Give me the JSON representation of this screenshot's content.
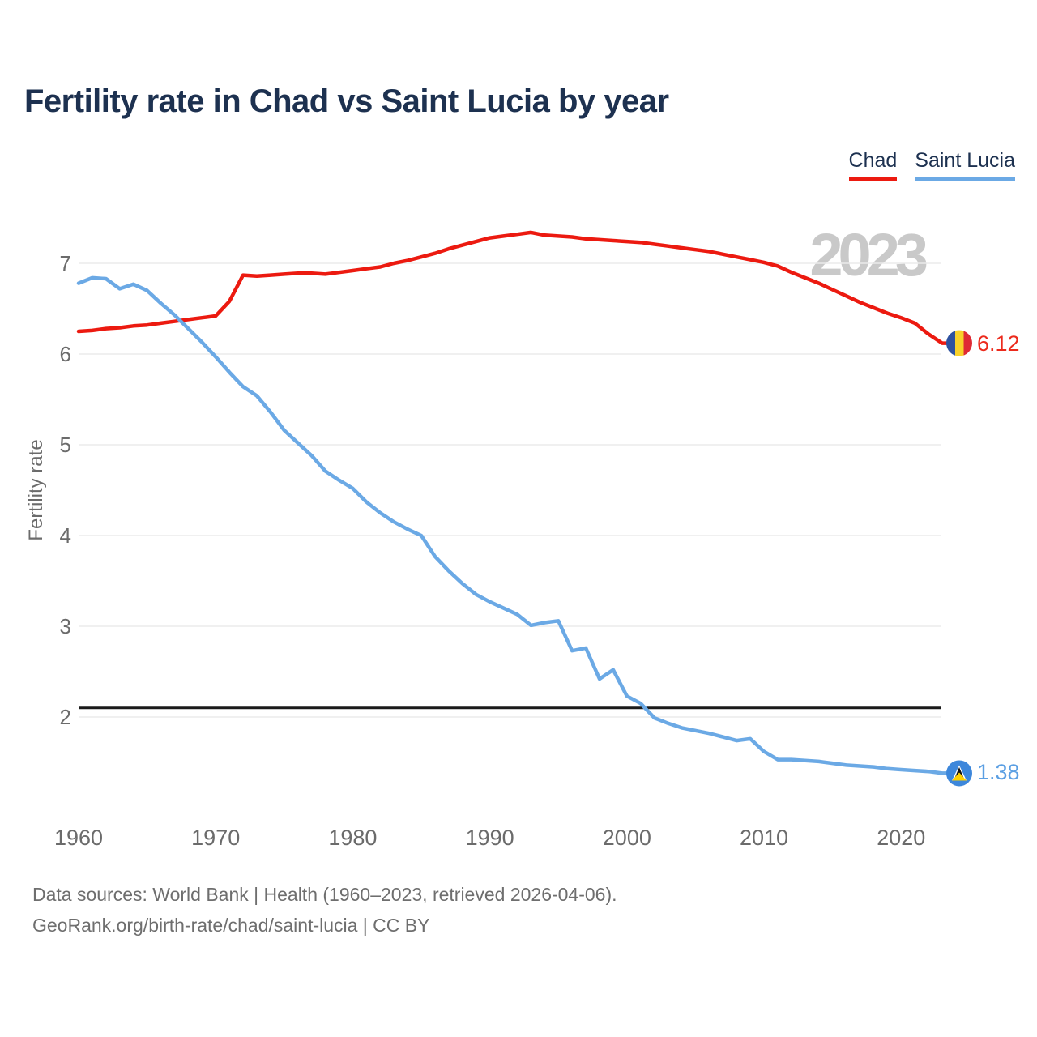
{
  "title": "Fertility rate in Chad vs Saint Lucia by year",
  "legend": [
    {
      "label": "Chad",
      "color": "#ec1a10"
    },
    {
      "label": "Saint Lucia",
      "color": "#6ba9e5"
    }
  ],
  "watermark": "2023",
  "y_axis": {
    "label": "Fertility rate",
    "ticks": [
      7,
      6,
      5,
      4,
      3,
      2
    ]
  },
  "x_axis": {
    "ticks": [
      1960,
      1970,
      1980,
      1990,
      2000,
      2010,
      2020
    ]
  },
  "end_labels": {
    "chad": {
      "value": "6.12",
      "color": "#ec2a1c",
      "flag": "chad-flag"
    },
    "saint_lucia": {
      "value": "1.38",
      "color": "#5b9fe3",
      "flag": "saint-lucia-flag"
    }
  },
  "reference_line": {
    "value": 2.1,
    "color": "#1a1a1a"
  },
  "footer": {
    "line1": "Data sources: World Bank | Health (1960–2023, retrieved 2026-04-06).",
    "line2": "GeoRank.org/birth-rate/chad/saint-lucia | CC BY"
  },
  "colors": {
    "grid": "#ebebeb",
    "axis_text": "#6b6b6b",
    "title_text": "#1d3150",
    "watermark_text": "#c9c9c9"
  },
  "chart_data": {
    "type": "line",
    "title": "Fertility rate in Chad vs Saint Lucia by year",
    "xlabel": "",
    "ylabel": "Fertility rate",
    "x_range": [
      1960,
      2023
    ],
    "ylim": [
      1.2,
      7.45
    ],
    "grid": "horizontal",
    "legend_position": "top-right",
    "x": [
      1960,
      1961,
      1962,
      1963,
      1964,
      1965,
      1966,
      1967,
      1968,
      1969,
      1970,
      1971,
      1972,
      1973,
      1974,
      1975,
      1976,
      1977,
      1978,
      1979,
      1980,
      1981,
      1982,
      1983,
      1984,
      1985,
      1986,
      1987,
      1988,
      1989,
      1990,
      1991,
      1992,
      1993,
      1994,
      1995,
      1996,
      1997,
      1998,
      1999,
      2000,
      2001,
      2002,
      2003,
      2004,
      2005,
      2006,
      2007,
      2008,
      2009,
      2010,
      2011,
      2012,
      2013,
      2014,
      2015,
      2016,
      2017,
      2018,
      2019,
      2020,
      2021,
      2022,
      2023
    ],
    "series": [
      {
        "name": "Chad",
        "color": "#ec1a10",
        "end_value": 6.12,
        "values": [
          6.25,
          6.26,
          6.28,
          6.29,
          6.31,
          6.32,
          6.34,
          6.36,
          6.38,
          6.4,
          6.42,
          6.58,
          6.87,
          6.86,
          6.87,
          6.88,
          6.89,
          6.89,
          6.88,
          6.9,
          6.92,
          6.94,
          6.96,
          7.0,
          7.03,
          7.07,
          7.11,
          7.16,
          7.2,
          7.24,
          7.28,
          7.3,
          7.32,
          7.34,
          7.31,
          7.3,
          7.29,
          7.27,
          7.26,
          7.25,
          7.24,
          7.23,
          7.21,
          7.19,
          7.17,
          7.15,
          7.13,
          7.1,
          7.07,
          7.04,
          7.01,
          6.97,
          6.9,
          6.84,
          6.78,
          6.71,
          6.64,
          6.57,
          6.51,
          6.45,
          6.4,
          6.34,
          6.22,
          6.12
        ]
      },
      {
        "name": "Saint Lucia",
        "color": "#6ba9e5",
        "end_value": 1.38,
        "values": [
          6.78,
          6.84,
          6.83,
          6.72,
          6.77,
          6.7,
          6.56,
          6.43,
          6.28,
          6.13,
          5.97,
          5.8,
          5.64,
          5.54,
          5.36,
          5.16,
          5.02,
          4.88,
          4.71,
          4.61,
          4.52,
          4.37,
          4.25,
          4.15,
          4.07,
          4.0,
          3.77,
          3.61,
          3.47,
          3.35,
          3.27,
          3.2,
          3.13,
          3.01,
          3.04,
          3.06,
          2.73,
          2.76,
          2.42,
          2.52,
          2.23,
          2.15,
          1.99,
          1.93,
          1.88,
          1.85,
          1.82,
          1.78,
          1.74,
          1.76,
          1.62,
          1.53,
          1.53,
          1.52,
          1.51,
          1.49,
          1.47,
          1.46,
          1.45,
          1.43,
          1.42,
          1.41,
          1.4,
          1.38
        ]
      }
    ],
    "annotations": {
      "replacement_fertility_line": 2.1,
      "watermark_year": "2023"
    }
  }
}
